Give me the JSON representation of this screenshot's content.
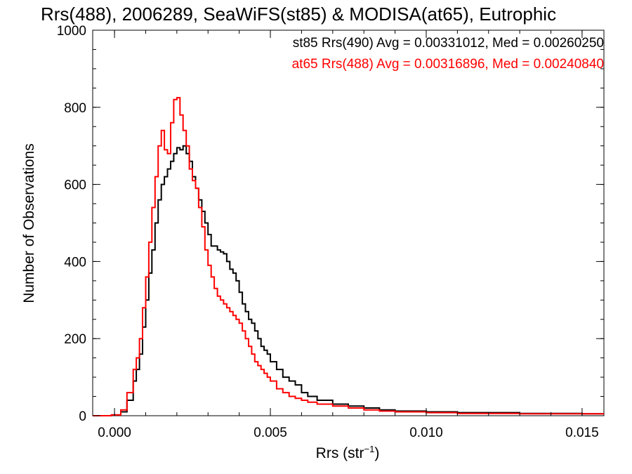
{
  "chart_data": {
    "type": "line",
    "title": "Rrs(488), 2006289, SeaWiFS(st85) & MODISA(at65), Eutrophic",
    "xlabel": "Rrs (str",
    "xlabel_sup": "−1",
    "xlabel_end": ")",
    "ylabel": "Number of Observations",
    "xlim": [
      -0.0007,
      0.0157
    ],
    "ylim": [
      0,
      1000
    ],
    "x_ticks": [
      0.0,
      0.005,
      0.01,
      0.015
    ],
    "x_tick_labels": [
      "0.000",
      "0.005",
      "0.010",
      "0.015"
    ],
    "y_ticks": [
      0,
      200,
      400,
      600,
      800,
      1000
    ],
    "y_tick_labels": [
      "0",
      "200",
      "400",
      "600",
      "800",
      "1000"
    ],
    "grid": false,
    "legend_position": "top-right",
    "step": true,
    "series": [
      {
        "name": "st85 Rrs(490) Avg = 0.00331012, Med = 0.00260250",
        "color": "#000000",
        "x": [
          -0.0007,
          -0.0001,
          0.0002,
          0.0004,
          0.0006,
          0.0007,
          0.0008,
          0.0009,
          0.001,
          0.0011,
          0.0012,
          0.0013,
          0.0014,
          0.0015,
          0.0016,
          0.0017,
          0.0018,
          0.0019,
          0.002,
          0.0021,
          0.0022,
          0.0023,
          0.0024,
          0.0025,
          0.0026,
          0.0027,
          0.0028,
          0.0029,
          0.003,
          0.0031,
          0.0032,
          0.0033,
          0.0034,
          0.0035,
          0.0036,
          0.0037,
          0.0038,
          0.0039,
          0.004,
          0.0041,
          0.0042,
          0.0043,
          0.0044,
          0.0045,
          0.0046,
          0.0047,
          0.0048,
          0.0049,
          0.005,
          0.0052,
          0.0054,
          0.0056,
          0.0058,
          0.006,
          0.0062,
          0.0065,
          0.007,
          0.0075,
          0.008,
          0.0085,
          0.009,
          0.01,
          0.011,
          0.012,
          0.013,
          0.014,
          0.015,
          0.0157
        ],
        "values": [
          0,
          2,
          10,
          40,
          90,
          120,
          160,
          230,
          300,
          370,
          430,
          500,
          560,
          600,
          620,
          640,
          660,
          680,
          695,
          690,
          700,
          680,
          660,
          620,
          590,
          560,
          530,
          500,
          470,
          440,
          440,
          430,
          425,
          420,
          400,
          380,
          370,
          350,
          320,
          290,
          270,
          250,
          240,
          220,
          200,
          180,
          170,
          160,
          140,
          120,
          100,
          90,
          80,
          60,
          50,
          40,
          30,
          25,
          20,
          15,
          12,
          10,
          8,
          8,
          6,
          6,
          5,
          5
        ]
      },
      {
        "name": "at65 Rrs(488) Avg = 0.00316896, Med = 0.00240840",
        "color": "#ff0000",
        "x": [
          -0.0007,
          -0.0001,
          0.0002,
          0.0004,
          0.0006,
          0.0007,
          0.0008,
          0.0009,
          0.001,
          0.0011,
          0.0012,
          0.0013,
          0.0014,
          0.0015,
          0.0016,
          0.0017,
          0.0018,
          0.0019,
          0.002,
          0.0021,
          0.0022,
          0.0023,
          0.0024,
          0.0025,
          0.0026,
          0.0027,
          0.0028,
          0.0029,
          0.003,
          0.0031,
          0.0032,
          0.0033,
          0.0034,
          0.0035,
          0.0036,
          0.0037,
          0.0038,
          0.0039,
          0.004,
          0.0041,
          0.0042,
          0.0043,
          0.0044,
          0.0045,
          0.0046,
          0.0047,
          0.0048,
          0.0049,
          0.005,
          0.0052,
          0.0054,
          0.0056,
          0.0058,
          0.006,
          0.0062,
          0.0065,
          0.007,
          0.0075,
          0.008,
          0.0085,
          0.009,
          0.01,
          0.011,
          0.012,
          0.013,
          0.014,
          0.015,
          0.0157
        ],
        "values": [
          0,
          2,
          15,
          60,
          120,
          150,
          200,
          280,
          360,
          450,
          540,
          620,
          700,
          740,
          690,
          680,
          760,
          820,
          825,
          780,
          740,
          700,
          640,
          610,
          590,
          540,
          490,
          430,
          390,
          360,
          330,
          310,
          300,
          290,
          280,
          270,
          260,
          250,
          240,
          220,
          200,
          180,
          160,
          140,
          130,
          120,
          110,
          100,
          90,
          70,
          60,
          50,
          45,
          40,
          35,
          30,
          25,
          20,
          15,
          12,
          10,
          8,
          6,
          6,
          5,
          5,
          5,
          5
        ]
      }
    ]
  }
}
